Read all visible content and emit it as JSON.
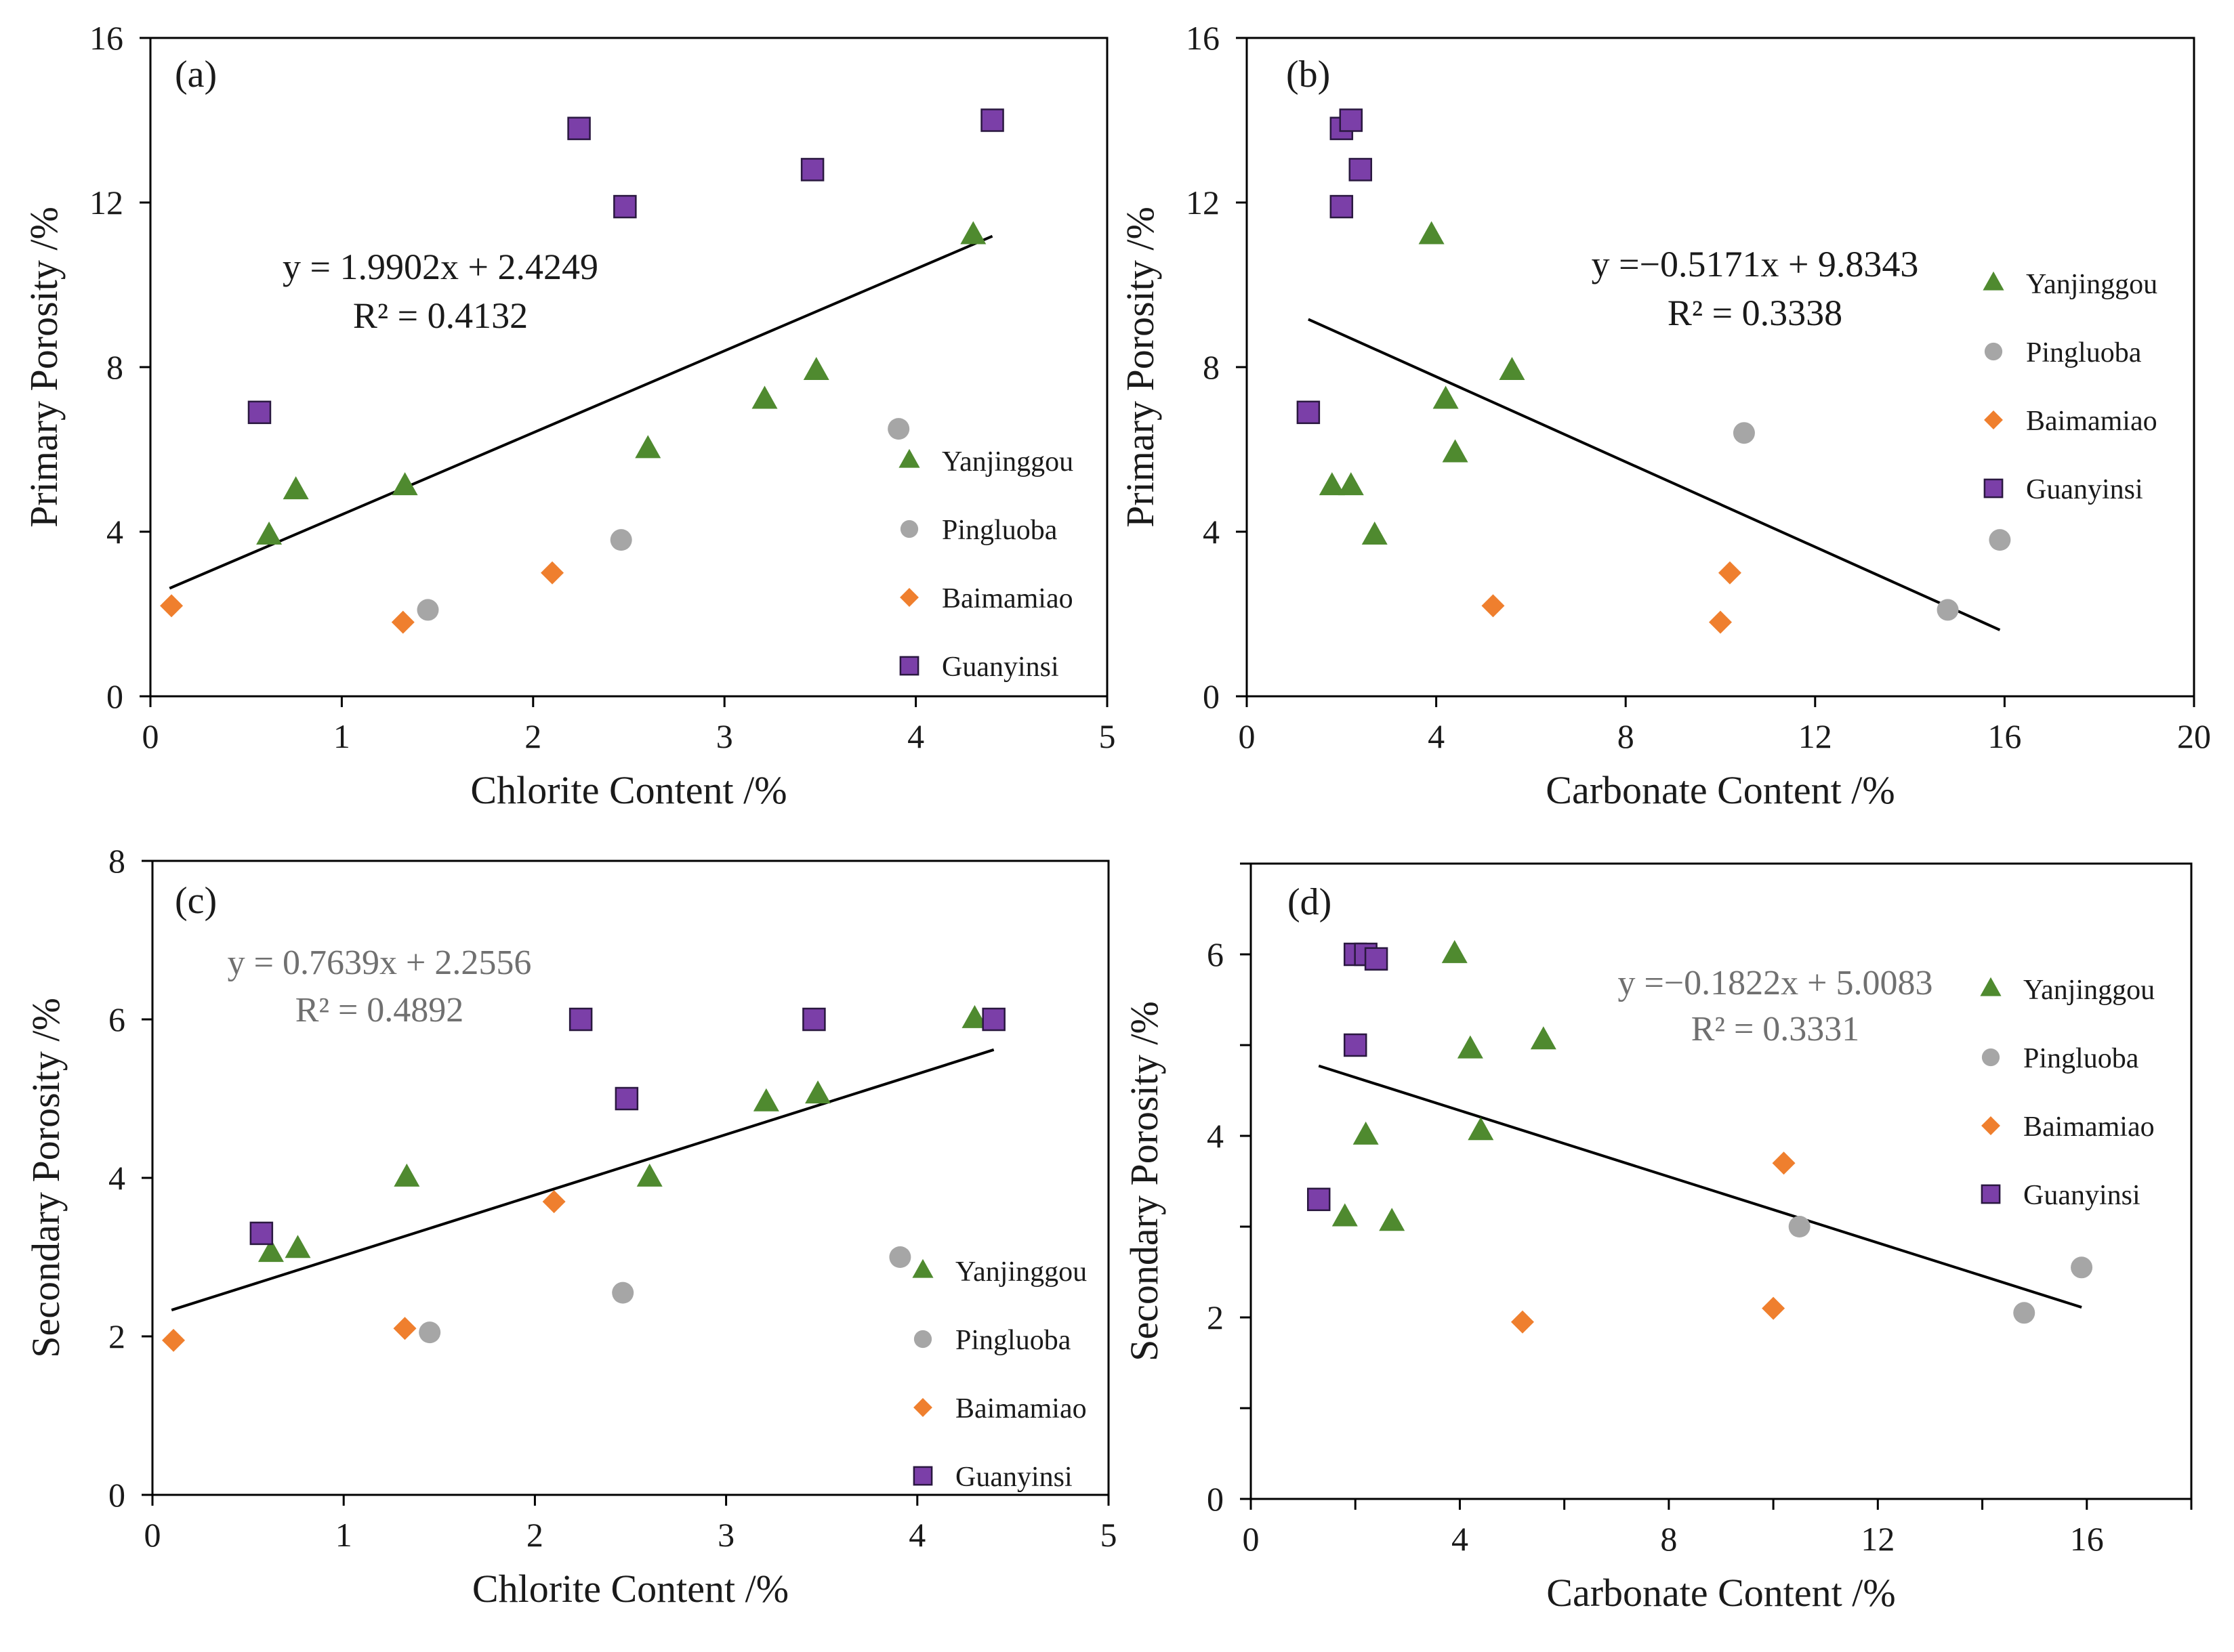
{
  "colors": {
    "Yanjinggou": "#4f8a2f",
    "Pingluoba": "#a6a6a6",
    "Baimamiao": "#ef7f2e",
    "Guanyinsi": "#7b3fa8",
    "axis": "#000000",
    "trend": "#000000"
  },
  "legend_markers": {
    "Yanjinggou": "triangle",
    "Pingluoba": "circle",
    "Baimamiao": "diamond",
    "Guanyinsi": "square"
  },
  "chart_data": [
    {
      "id": "a",
      "type": "scatter",
      "panel_label": "(a)",
      "xlabel": "Chlorite Content /%",
      "ylabel": "Primary Porosity /%",
      "xlim": [
        0,
        5
      ],
      "ylim": [
        0,
        16
      ],
      "xticks": [
        "0",
        "1",
        "2",
        "3",
        "4",
        "5"
      ],
      "yticks": [
        "0",
        "4",
        "8",
        "12",
        "16"
      ],
      "legend": [
        "Yanjinggou",
        "Pingluoba",
        "Baimamiao",
        "Guanyinsi"
      ],
      "legend_position": "right",
      "trendline": {
        "equation": "y = 1.9902x + 2.4249",
        "r2": "R² = 0.4132",
        "slope": 1.9902,
        "intercept": 2.4249,
        "x_range": [
          0.1,
          4.4
        ],
        "label_style": "dark"
      },
      "series": [
        {
          "name": "Yanjinggou",
          "marker": "triangle",
          "points": [
            [
              0.62,
              3.9
            ],
            [
              0.76,
              5.0
            ],
            [
              1.33,
              5.1
            ],
            [
              2.6,
              6.0
            ],
            [
              3.21,
              7.2
            ],
            [
              3.48,
              7.9
            ],
            [
              4.3,
              11.2
            ]
          ]
        },
        {
          "name": "Pingluoba",
          "marker": "circle",
          "points": [
            [
              1.45,
              2.1
            ],
            [
              2.46,
              3.8
            ],
            [
              3.91,
              6.5
            ]
          ]
        },
        {
          "name": "Baimamiao",
          "marker": "diamond",
          "points": [
            [
              0.11,
              2.2
            ],
            [
              1.32,
              1.8
            ],
            [
              2.1,
              3.0
            ]
          ]
        },
        {
          "name": "Guanyinsi",
          "marker": "square",
          "points": [
            [
              0.57,
              6.9
            ],
            [
              2.24,
              13.8
            ],
            [
              2.48,
              11.9
            ],
            [
              3.46,
              12.8
            ],
            [
              4.4,
              14.0
            ]
          ]
        }
      ]
    },
    {
      "id": "b",
      "type": "scatter",
      "panel_label": "(b)",
      "xlabel": "Carbonate Content /%",
      "ylabel": "Primary Porosity /%",
      "xlim": [
        0,
        20
      ],
      "ylim": [
        0,
        16
      ],
      "xticks": [
        "0",
        "4",
        "8",
        "12",
        "16",
        "20"
      ],
      "yticks": [
        "0",
        "4",
        "8",
        "12",
        "16"
      ],
      "legend": [
        "Yanjinggou",
        "Pingluoba",
        "Baimamiao",
        "Guanyinsi"
      ],
      "legend_position": "top-right",
      "trendline": {
        "equation": "y =−0.5171x + 9.8343",
        "r2": "R² = 0.3338",
        "slope": -0.5171,
        "intercept": 9.8343,
        "x_range": [
          1.3,
          15.9
        ],
        "label_style": "dark"
      },
      "series": [
        {
          "name": "Yanjinggou",
          "marker": "triangle",
          "points": [
            [
              1.8,
              5.1
            ],
            [
              2.2,
              5.1
            ],
            [
              2.7,
              3.9
            ],
            [
              3.9,
              11.2
            ],
            [
              4.2,
              7.2
            ],
            [
              4.4,
              5.9
            ],
            [
              5.6,
              7.9
            ]
          ]
        },
        {
          "name": "Pingluoba",
          "marker": "circle",
          "points": [
            [
              10.5,
              6.4
            ],
            [
              14.8,
              2.1
            ],
            [
              15.9,
              3.8
            ]
          ]
        },
        {
          "name": "Baimamiao",
          "marker": "diamond",
          "points": [
            [
              5.2,
              2.2
            ],
            [
              10.0,
              1.8
            ],
            [
              10.2,
              3.0
            ]
          ]
        },
        {
          "name": "Guanyinsi",
          "marker": "square",
          "points": [
            [
              1.3,
              6.9
            ],
            [
              2.0,
              13.8
            ],
            [
              2.2,
              14.0
            ],
            [
              2.0,
              11.9
            ],
            [
              2.4,
              12.8
            ]
          ]
        }
      ]
    },
    {
      "id": "c",
      "type": "scatter",
      "panel_label": "(c)",
      "xlabel": "Chlorite Content /%",
      "ylabel": "Secondary Porosity /%",
      "xlim": [
        0,
        5
      ],
      "ylim": [
        0,
        8
      ],
      "xticks": [
        "0",
        "1",
        "2",
        "3",
        "4",
        "5"
      ],
      "yticks": [
        "0",
        "2",
        "4",
        "6",
        "8"
      ],
      "legend": [
        "Yanjinggou",
        "Pingluoba",
        "Baimamiao",
        "Guanyinsi"
      ],
      "legend_position": "bottom-right",
      "trendline": {
        "equation": "y = 0.7639x + 2.2556",
        "r2": "R² = 0.4892",
        "slope": 0.7639,
        "intercept": 2.2556,
        "x_range": [
          0.1,
          4.4
        ],
        "label_style": "gray"
      },
      "series": [
        {
          "name": "Yanjinggou",
          "marker": "triangle",
          "points": [
            [
              0.62,
              3.05
            ],
            [
              0.76,
              3.1
            ],
            [
              1.33,
              4.0
            ],
            [
              2.6,
              4.0
            ],
            [
              3.21,
              4.95
            ],
            [
              3.48,
              5.05
            ],
            [
              4.3,
              6.0
            ]
          ]
        },
        {
          "name": "Pingluoba",
          "marker": "circle",
          "points": [
            [
              1.45,
              2.05
            ],
            [
              2.46,
              2.55
            ],
            [
              3.91,
              3.0
            ]
          ]
        },
        {
          "name": "Baimamiao",
          "marker": "diamond",
          "points": [
            [
              0.11,
              1.95
            ],
            [
              1.32,
              2.1
            ],
            [
              2.1,
              3.7
            ]
          ]
        },
        {
          "name": "Guanyinsi",
          "marker": "square",
          "points": [
            [
              0.57,
              3.3
            ],
            [
              2.24,
              6.0
            ],
            [
              2.48,
              5.0
            ],
            [
              3.46,
              6.0
            ],
            [
              4.4,
              6.0
            ]
          ]
        }
      ]
    },
    {
      "id": "d",
      "type": "scatter",
      "panel_label": "(d)",
      "xlabel": "Carbonate Content /%",
      "ylabel": "Secondary Porosity /%",
      "xlim": [
        0,
        18
      ],
      "ylim": [
        0,
        7
      ],
      "xticks": [
        "0",
        "4",
        "8",
        "12",
        "16"
      ],
      "xtick_values": [
        0,
        4,
        8,
        12,
        16
      ],
      "xminor": [
        2,
        6,
        10,
        14,
        18
      ],
      "yticks": [
        "0",
        "2",
        "4",
        "6"
      ],
      "ytick_values": [
        0,
        2,
        4,
        6
      ],
      "yminor": [
        1,
        3,
        5,
        7
      ],
      "legend": [
        "Yanjinggou",
        "Pingluoba",
        "Baimamiao",
        "Guanyinsi"
      ],
      "legend_position": "top-right",
      "trendline": {
        "equation": "y =−0.1822x + 5.0083",
        "r2": "R² = 0.3331",
        "slope": -0.1822,
        "intercept": 5.0083,
        "x_range": [
          1.3,
          15.9
        ],
        "label_style": "gray"
      },
      "series": [
        {
          "name": "Yanjinggou",
          "marker": "triangle",
          "points": [
            [
              1.8,
              3.1
            ],
            [
              2.2,
              4.0
            ],
            [
              2.7,
              3.05
            ],
            [
              3.9,
              6.0
            ],
            [
              4.2,
              4.95
            ],
            [
              4.4,
              4.05
            ],
            [
              5.6,
              5.05
            ]
          ]
        },
        {
          "name": "Pingluoba",
          "marker": "circle",
          "points": [
            [
              10.5,
              3.0
            ],
            [
              14.8,
              2.05
            ],
            [
              15.9,
              2.55
            ]
          ]
        },
        {
          "name": "Baimamiao",
          "marker": "diamond",
          "points": [
            [
              5.2,
              1.95
            ],
            [
              10.0,
              2.1
            ],
            [
              10.2,
              3.7
            ]
          ]
        },
        {
          "name": "Guanyinsi",
          "marker": "square",
          "points": [
            [
              1.3,
              3.3
            ],
            [
              2.0,
              6.0
            ],
            [
              2.2,
              6.0
            ],
            [
              2.0,
              5.0
            ],
            [
              2.4,
              5.95
            ]
          ]
        }
      ]
    }
  ]
}
